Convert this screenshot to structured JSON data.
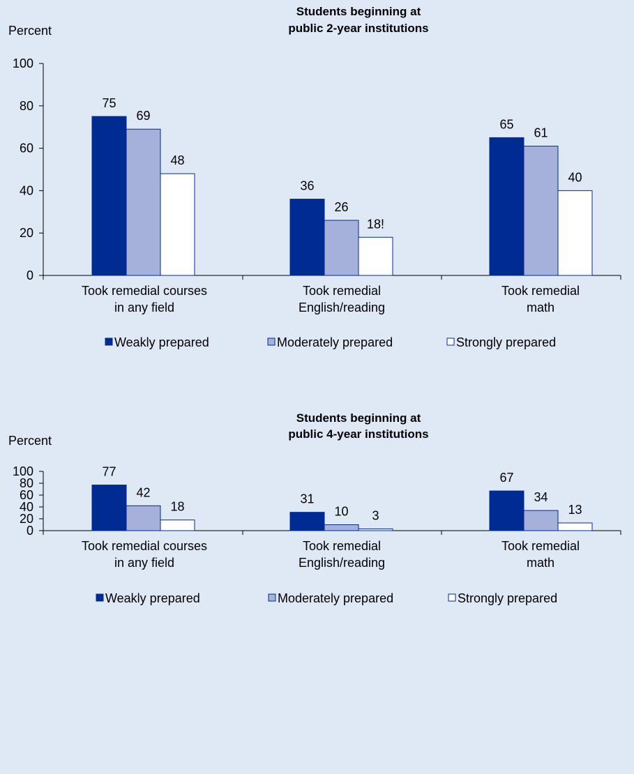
{
  "colors": {
    "background": "#dfe8f5",
    "weak": "#002b91",
    "moderate": "#a5b1da",
    "strong": "#ffffff",
    "bar_stroke": "#002b91"
  },
  "chart_data": [
    {
      "type": "bar",
      "title_lines": [
        "Students beginning at",
        "public 2-year institutions"
      ],
      "ylabel": "Percent",
      "ylim": [
        0,
        100
      ],
      "yticks": [
        0,
        20,
        40,
        60,
        80,
        100
      ],
      "categories": [
        [
          "Took remedial courses",
          "in any field"
        ],
        [
          "Took remedial",
          "English/reading"
        ],
        [
          "Took remedial",
          "math"
        ]
      ],
      "series": [
        {
          "name": "Weakly prepared",
          "color": "#002b91",
          "values": [
            75,
            36,
            65
          ],
          "labels": [
            "75",
            "36",
            "65"
          ]
        },
        {
          "name": "Moderately prepared",
          "color": "#a5b1da",
          "values": [
            69,
            26,
            61
          ],
          "labels": [
            "69",
            "26",
            "61"
          ]
        },
        {
          "name": "Strongly prepared",
          "color": "#ffffff",
          "values": [
            48,
            18,
            40
          ],
          "labels": [
            "48",
            "18!",
            "40"
          ]
        }
      ],
      "legend_position": "bottom",
      "grid": false
    },
    {
      "type": "bar",
      "title_lines": [
        "Students beginning at",
        "public 4-year institutions"
      ],
      "ylabel": "Percent",
      "ylim": [
        0,
        100
      ],
      "yticks": [
        0,
        20,
        40,
        60,
        80,
        100
      ],
      "categories": [
        [
          "Took remedial courses",
          "in any field"
        ],
        [
          "Took remedial",
          "English/reading"
        ],
        [
          "Took remedial",
          "math"
        ]
      ],
      "series": [
        {
          "name": "Weakly prepared",
          "color": "#002b91",
          "values": [
            77,
            31,
            67
          ],
          "labels": [
            "77",
            "31",
            "67"
          ]
        },
        {
          "name": "Moderately prepared",
          "color": "#a5b1da",
          "values": [
            42,
            10,
            34
          ],
          "labels": [
            "42",
            "10",
            "34"
          ]
        },
        {
          "name": "Strongly prepared",
          "color": "#ffffff",
          "values": [
            18,
            3,
            13
          ],
          "labels": [
            "18",
            "3",
            "13"
          ]
        }
      ],
      "legend_position": "bottom",
      "grid": false
    }
  ]
}
